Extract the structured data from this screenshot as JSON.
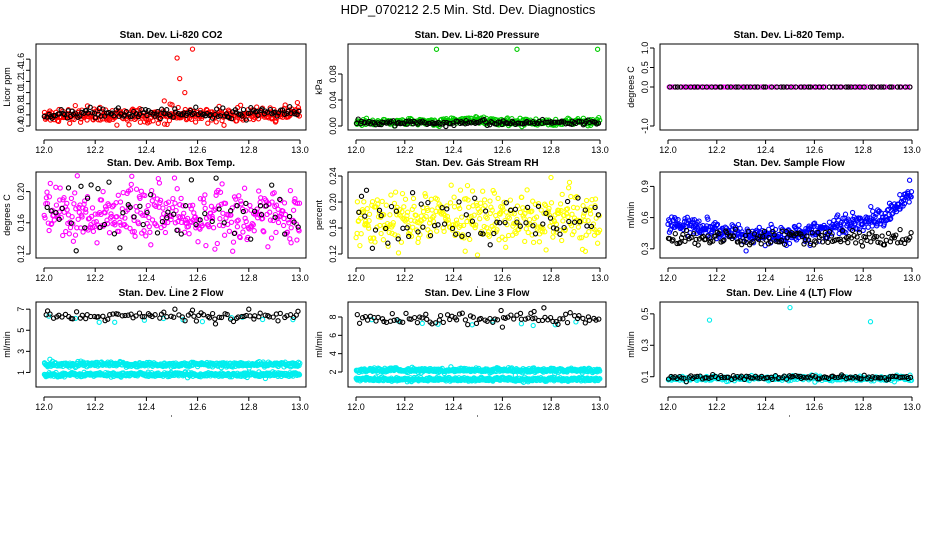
{
  "page": {
    "title": "HDP_070212  2.5 Min. Std. Dev. Diagnostics"
  },
  "chart_data": [
    {
      "type": "scatter",
      "title": "Stan. Dev. Li-820 CO2",
      "xlabel": "",
      "ylabel": "Licor ppm",
      "xlim": [
        12.0,
        13.0
      ],
      "ylim": [
        0.4,
        1.8
      ],
      "xticks": [
        "12.0",
        "12.2",
        "12.4",
        "12.6",
        "12.8",
        "13.0"
      ],
      "yticks": [
        "0.4",
        "0.6",
        "0.8",
        "1.0",
        "1.2",
        "1.4",
        "1.6"
      ],
      "series": [
        {
          "name": "red",
          "color": "#ff0000",
          "n": 360,
          "base": 0.6,
          "spread": 0.06,
          "trend": 0.02,
          "outliers": [
            [
              12.52,
              1.62
            ],
            [
              12.58,
              1.78
            ],
            [
              12.53,
              1.25
            ],
            [
              12.55,
              1.0
            ],
            [
              12.47,
              0.85
            ],
            [
              12.99,
              0.82
            ],
            [
              12.64,
              0.45
            ],
            [
              12.5,
              0.78
            ]
          ]
        },
        {
          "name": "black",
          "color": "#000000",
          "n": 140,
          "base": 0.62,
          "spread": 0.05,
          "trend": 0.03,
          "outliers": []
        }
      ]
    },
    {
      "type": "scatter",
      "title": "Stan. Dev. Li-820 Pressure",
      "xlabel": "",
      "ylabel": "kPa",
      "xlim": [
        12.0,
        13.0
      ],
      "ylim": [
        0.0,
        0.12
      ],
      "xticks": [
        "12.0",
        "12.2",
        "12.4",
        "12.6",
        "12.8",
        "13.0"
      ],
      "yticks": [
        "0.00",
        "0.04",
        "0.08"
      ],
      "series": [
        {
          "name": "green",
          "color": "#00cc00",
          "n": 360,
          "base": 0.006,
          "spread": 0.0025,
          "trend": 0.0,
          "bump": [
            12.47,
            0.005
          ],
          "outliers": [
            [
              12.33,
              0.118
            ],
            [
              12.66,
              0.118
            ],
            [
              12.99,
              0.118
            ]
          ]
        },
        {
          "name": "black",
          "color": "#000000",
          "n": 140,
          "base": 0.005,
          "spread": 0.002,
          "trend": 0.0,
          "outliers": []
        }
      ]
    },
    {
      "type": "scatter",
      "title": "Stan. Dev. Li-820 Temp.",
      "xlabel": "",
      "ylabel": "degrees C",
      "xlim": [
        12.0,
        13.0
      ],
      "ylim": [
        -1.0,
        1.0
      ],
      "xticks": [
        "12.0",
        "12.2",
        "12.4",
        "12.6",
        "12.8",
        "13.0"
      ],
      "yticks": [
        "-1.0",
        "0.0",
        "0.5",
        "1.0"
      ],
      "series": [
        {
          "name": "magenta",
          "color": "#ff00ff",
          "n": 90,
          "base": 0.0,
          "spread": 0.0,
          "trend": 0.0,
          "outliers": []
        },
        {
          "name": "black",
          "color": "#000000",
          "n": 60,
          "base": 0.0,
          "spread": 0.0,
          "trend": 0.0,
          "outliers": []
        }
      ]
    },
    {
      "type": "scatter",
      "title": "Stan. Dev. Amb. Box Temp.",
      "xlabel": "",
      "ylabel": "degrees C",
      "xlim": [
        12.0,
        13.0
      ],
      "ylim": [
        0.12,
        0.22
      ],
      "xticks": [
        "12.0",
        "12.2",
        "12.4",
        "12.6",
        "12.8",
        "13.0"
      ],
      "yticks": [
        "0.12",
        "0.16",
        "0.20"
      ],
      "series": [
        {
          "name": "magenta",
          "color": "#ff00ff",
          "n": 380,
          "base": 0.17,
          "spread": 0.018,
          "trend": 0.0,
          "outliers": []
        },
        {
          "name": "black",
          "color": "#000000",
          "n": 60,
          "base": 0.175,
          "spread": 0.02,
          "trend": 0.0,
          "outliers": []
        }
      ]
    },
    {
      "type": "scatter",
      "title": "Stan. Dev. Gas Stream RH",
      "xlabel": "",
      "ylabel": "percent",
      "xlim": [
        12.0,
        13.0
      ],
      "ylim": [
        0.12,
        0.24
      ],
      "xticks": [
        "12.0",
        "12.2",
        "12.4",
        "12.6",
        "12.8",
        "13.0"
      ],
      "yticks": [
        "0.12",
        "0.16",
        "0.20",
        "0.24"
      ],
      "series": [
        {
          "name": "yellow",
          "color": "#ffff00",
          "n": 380,
          "base": 0.175,
          "spread": 0.022,
          "trend": 0.0,
          "outliers": []
        },
        {
          "name": "black",
          "color": "#000000",
          "n": 70,
          "base": 0.17,
          "spread": 0.022,
          "trend": 0.0,
          "outliers": []
        }
      ]
    },
    {
      "type": "scatter",
      "title": "Stan. Dev. Sample Flow",
      "xlabel": "",
      "ylabel": "ml/min",
      "xlim": [
        12.0,
        13.0
      ],
      "ylim": [
        0.25,
        1.0
      ],
      "xticks": [
        "12.0",
        "12.2",
        "12.4",
        "12.6",
        "12.8",
        "13.0"
      ],
      "yticks": [
        "0.3",
        "0.6",
        "0.9"
      ],
      "series": [
        {
          "name": "blue",
          "color": "#0000ff",
          "n": 420,
          "base": 0.5,
          "spread": 0.045,
          "trend": 0.0,
          "curve": "sample_flow",
          "outliers": [
            [
              12.99,
              0.96
            ],
            [
              12.32,
              0.28
            ],
            [
              12.95,
              0.82
            ]
          ]
        },
        {
          "name": "black",
          "color": "#000000",
          "n": 150,
          "base": 0.4,
          "spread": 0.04,
          "trend": 0.0,
          "outliers": []
        }
      ]
    },
    {
      "type": "scatter",
      "title": "Stan. Dev. Line 2 Flow",
      "xlabel": "",
      "ylabel": "ml/min",
      "xlim": [
        12.0,
        13.0
      ],
      "ylim": [
        0.0,
        7.3
      ],
      "xticks": [
        "12.0",
        "12.2",
        "12.4",
        "12.6",
        "12.8",
        "13.0"
      ],
      "yticks": [
        "1",
        "3",
        "5",
        "7"
      ],
      "series": [
        {
          "name": "cyan-upper",
          "color": "#00eeee",
          "n": 420,
          "base": 1.75,
          "spread": 0.12,
          "trend": 0.0,
          "outliers": []
        },
        {
          "name": "cyan-lower",
          "color": "#00eeee",
          "n": 420,
          "base": 0.8,
          "spread": 0.1,
          "trend": 0.0,
          "outliers": []
        },
        {
          "name": "cyan-mid",
          "color": "#00eeee",
          "n": 12,
          "base": 6.0,
          "spread": 0.2,
          "trend": 0.0,
          "outliers": []
        },
        {
          "name": "black",
          "color": "#000000",
          "n": 90,
          "base": 6.35,
          "spread": 0.2,
          "trend": 0.0,
          "outliers": [
            [
              12.67,
              5.6
            ],
            [
              12.8,
              7.0
            ],
            [
              12.58,
              6.9
            ]
          ]
        }
      ]
    },
    {
      "type": "scatter",
      "title": "Stan. Dev. Line 3 Flow",
      "xlabel": "",
      "ylabel": "ml/min",
      "xlim": [
        12.0,
        13.0
      ],
      "ylim": [
        0.8,
        9.2
      ],
      "xticks": [
        "12.0",
        "12.2",
        "12.4",
        "12.6",
        "12.8",
        "13.0"
      ],
      "yticks": [
        "2",
        "4",
        "6",
        "8"
      ],
      "series": [
        {
          "name": "cyan-upper",
          "color": "#00eeee",
          "n": 420,
          "base": 2.2,
          "spread": 0.12,
          "trend": 0.0,
          "outliers": []
        },
        {
          "name": "cyan-lower",
          "color": "#00eeee",
          "n": 420,
          "base": 1.2,
          "spread": 0.1,
          "trend": 0.0,
          "outliers": []
        },
        {
          "name": "cyan-mid",
          "color": "#00eeee",
          "n": 10,
          "base": 7.4,
          "spread": 0.25,
          "trend": 0.0,
          "outliers": []
        },
        {
          "name": "black",
          "color": "#000000",
          "n": 90,
          "base": 7.8,
          "spread": 0.3,
          "trend": 0.0,
          "outliers": [
            [
              12.77,
              9.0
            ],
            [
              12.73,
              8.6
            ],
            [
              12.6,
              6.9
            ]
          ]
        }
      ]
    },
    {
      "type": "scatter",
      "title": "Stan. Dev. Line 4 (LT) Flow",
      "xlabel": "",
      "ylabel": "ml/min",
      "xlim": [
        12.0,
        13.0
      ],
      "ylim": [
        0.06,
        0.55
      ],
      "xticks": [
        "12.0",
        "12.2",
        "12.4",
        "12.6",
        "12.8",
        "13.0"
      ],
      "yticks": [
        "0.1",
        "0.3",
        "0.5"
      ],
      "series": [
        {
          "name": "cyan",
          "color": "#00eeee",
          "n": 300,
          "base": 0.09,
          "spread": 0.008,
          "trend": 0.0,
          "outliers": [
            [
              12.17,
              0.46
            ],
            [
              12.5,
              0.54
            ],
            [
              12.83,
              0.45
            ]
          ]
        },
        {
          "name": "black",
          "color": "#000000",
          "n": 110,
          "base": 0.095,
          "spread": 0.007,
          "trend": 0.0,
          "outliers": []
        }
      ]
    }
  ]
}
